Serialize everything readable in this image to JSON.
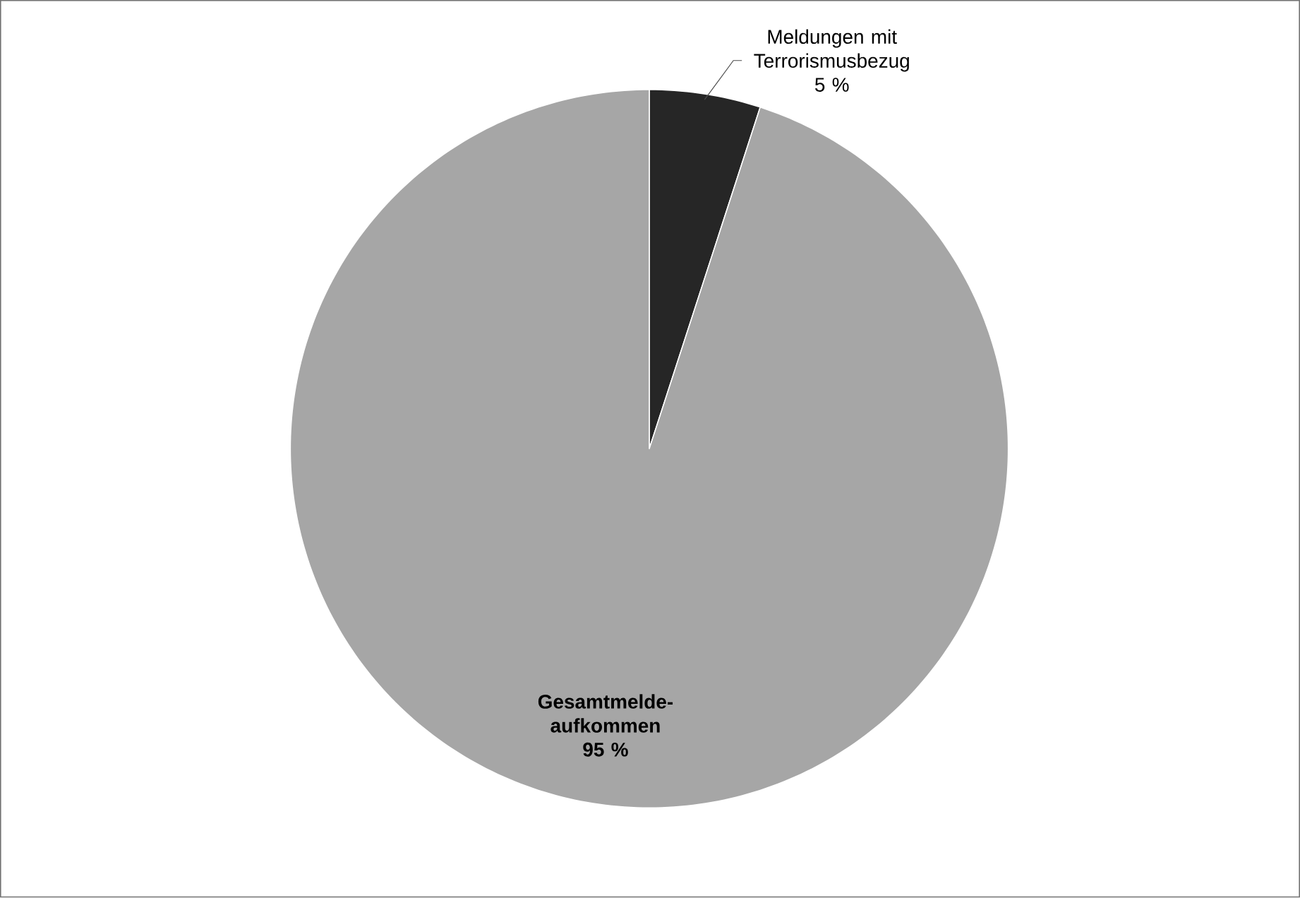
{
  "chart_data": {
    "type": "pie",
    "categories": [
      "Meldungen mit Terrorismusbezug",
      "Gesamtmelde-aufkommen"
    ],
    "values": [
      5,
      95
    ],
    "colors": [
      "#262626",
      "#a6a6a6"
    ],
    "value_labels": [
      "5 %",
      "95 %"
    ]
  }
}
